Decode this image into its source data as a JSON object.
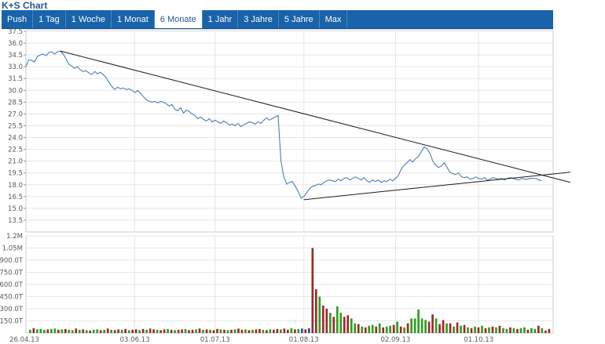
{
  "app": {
    "title": "K+S Chart"
  },
  "tabs": [
    {
      "label": "Push",
      "active": false
    },
    {
      "label": "1 Tag",
      "active": false
    },
    {
      "label": "1 Woche",
      "active": false
    },
    {
      "label": "1 Monat",
      "active": false
    },
    {
      "label": "6 Monate",
      "active": true
    },
    {
      "label": "1 Jahr",
      "active": false
    },
    {
      "label": "3 Jahre",
      "active": false
    },
    {
      "label": "5 Jahre",
      "active": false
    },
    {
      "label": "Max",
      "active": false
    }
  ],
  "colors": {
    "tab_bg": "#1863a9",
    "price_line": "#4a7fb5",
    "trend_line": "#1a1a1a",
    "volume_up": "#2e9e1f",
    "volume_down": "#9c2a2a",
    "volume_neutral": "#2a4f9c",
    "grid": "#e6e6e6"
  },
  "chart_data": [
    {
      "type": "line",
      "title": "",
      "xlabel": "",
      "ylabel": "",
      "ylim": [
        12.0,
        37.5
      ],
      "y_ticks": [
        "37.5",
        "36.0",
        "34.5",
        "33.0",
        "31.5",
        "30.0",
        "28.5",
        "27.0",
        "25.5",
        "24.0",
        "22.5",
        "21.0",
        "19.5",
        "18.0",
        "16.5",
        "15.0",
        "13.5"
      ],
      "x_tick_labels": [
        "26.04.13",
        "03.06.13",
        "01.07.13",
        "01.08.13",
        "02.09.13",
        "01.10.13"
      ],
      "x_tick_days": [
        0,
        38,
        66,
        97,
        129,
        158
      ],
      "x_range_days": [
        0,
        184
      ],
      "grid": true,
      "series": [
        {
          "values": [
            [
              0,
              33.0
            ],
            [
              1,
              33.9
            ],
            [
              2,
              33.8
            ],
            [
              3,
              33.6
            ],
            [
              4,
              34.3
            ],
            [
              5,
              34.5
            ],
            [
              6,
              34.6
            ],
            [
              7,
              34.4
            ],
            [
              8,
              34.8
            ],
            [
              9,
              34.9
            ],
            [
              10,
              34.6
            ],
            [
              11,
              34.9
            ],
            [
              12,
              35.0
            ],
            [
              13,
              34.6
            ],
            [
              14,
              34.0
            ],
            [
              15,
              33.3
            ],
            [
              16,
              33.1
            ],
            [
              17,
              32.8
            ],
            [
              18,
              33.0
            ],
            [
              19,
              32.6
            ],
            [
              20,
              32.4
            ],
            [
              21,
              32.5
            ],
            [
              22,
              32.2
            ],
            [
              23,
              32.0
            ],
            [
              24,
              32.4
            ],
            [
              25,
              32.1
            ],
            [
              26,
              32.3
            ],
            [
              27,
              32.0
            ],
            [
              28,
              31.6
            ],
            [
              29,
              31.0
            ],
            [
              30,
              30.5
            ],
            [
              31,
              30.1
            ],
            [
              32,
              30.4
            ],
            [
              33,
              30.2
            ],
            [
              34,
              30.3
            ],
            [
              35,
              30.1
            ],
            [
              36,
              30.2
            ],
            [
              37,
              30.0
            ],
            [
              38,
              29.7
            ],
            [
              39,
              30.0
            ],
            [
              40,
              29.6
            ],
            [
              41,
              29.2
            ],
            [
              42,
              28.8
            ],
            [
              43,
              28.6
            ],
            [
              44,
              28.5
            ],
            [
              45,
              28.6
            ],
            [
              46,
              28.4
            ],
            [
              47,
              28.6
            ],
            [
              48,
              28.5
            ],
            [
              49,
              28.3
            ],
            [
              50,
              28.0
            ],
            [
              51,
              28.2
            ],
            [
              52,
              27.6
            ],
            [
              53,
              27.4
            ],
            [
              54,
              27.8
            ],
            [
              55,
              27.1
            ],
            [
              56,
              27.5
            ],
            [
              57,
              27.3
            ],
            [
              58,
              27.0
            ],
            [
              59,
              26.8
            ],
            [
              60,
              26.4
            ],
            [
              61,
              26.6
            ],
            [
              62,
              26.3
            ],
            [
              63,
              26.1
            ],
            [
              64,
              26.4
            ],
            [
              65,
              26.0
            ],
            [
              66,
              26.2
            ],
            [
              67,
              26.0
            ],
            [
              68,
              25.8
            ],
            [
              69,
              26.1
            ],
            [
              70,
              25.9
            ],
            [
              71,
              25.6
            ],
            [
              72,
              25.7
            ],
            [
              73,
              25.5
            ],
            [
              74,
              25.8
            ],
            [
              75,
              25.4
            ],
            [
              76,
              25.6
            ],
            [
              77,
              25.8
            ],
            [
              78,
              26.0
            ],
            [
              79,
              25.9
            ],
            [
              80,
              25.7
            ],
            [
              81,
              26.0
            ],
            [
              82,
              25.8
            ],
            [
              83,
              26.2
            ],
            [
              84,
              26.5
            ],
            [
              85,
              26.2
            ],
            [
              86,
              26.4
            ],
            [
              87,
              26.6
            ],
            [
              88,
              26.8
            ],
            [
              89,
              21.0
            ],
            [
              90,
              19.0
            ],
            [
              91,
              18.1
            ],
            [
              92,
              18.3
            ],
            [
              93,
              18.4
            ],
            [
              94,
              17.8
            ],
            [
              95,
              17.2
            ],
            [
              96,
              16.3
            ],
            [
              97,
              16.5
            ],
            [
              98,
              17.0
            ],
            [
              99,
              17.5
            ],
            [
              100,
              17.8
            ],
            [
              101,
              17.9
            ],
            [
              102,
              18.1
            ],
            [
              103,
              18.0
            ],
            [
              104,
              18.3
            ],
            [
              105,
              18.5
            ],
            [
              106,
              18.6
            ],
            [
              107,
              18.5
            ],
            [
              108,
              18.4
            ],
            [
              109,
              18.7
            ],
            [
              110,
              18.5
            ],
            [
              111,
              18.8
            ],
            [
              112,
              18.9
            ],
            [
              113,
              18.6
            ],
            [
              114,
              18.8
            ],
            [
              115,
              19.0
            ],
            [
              116,
              18.8
            ],
            [
              117,
              18.6
            ],
            [
              118,
              18.9
            ],
            [
              119,
              18.5
            ],
            [
              120,
              18.3
            ],
            [
              121,
              18.6
            ],
            [
              122,
              18.4
            ],
            [
              123,
              18.6
            ],
            [
              124,
              18.3
            ],
            [
              125,
              18.5
            ],
            [
              126,
              18.4
            ],
            [
              127,
              18.7
            ],
            [
              128,
              18.5
            ],
            [
              129,
              18.8
            ],
            [
              130,
              19.2
            ],
            [
              131,
              20.0
            ],
            [
              132,
              20.5
            ],
            [
              133,
              20.8
            ],
            [
              134,
              21.2
            ],
            [
              135,
              20.9
            ],
            [
              136,
              21.3
            ],
            [
              137,
              21.6
            ],
            [
              138,
              22.2
            ],
            [
              139,
              22.8
            ],
            [
              140,
              22.6
            ],
            [
              141,
              22.0
            ],
            [
              142,
              21.0
            ],
            [
              143,
              20.5
            ],
            [
              144,
              20.2
            ],
            [
              145,
              20.4
            ],
            [
              146,
              20.8
            ],
            [
              147,
              20.2
            ],
            [
              148,
              19.6
            ],
            [
              149,
              19.4
            ],
            [
              150,
              19.3
            ],
            [
              151,
              19.5
            ],
            [
              152,
              19.0
            ],
            [
              153,
              18.9
            ],
            [
              154,
              19.0
            ],
            [
              155,
              18.7
            ],
            [
              156,
              18.8
            ],
            [
              157,
              19.0
            ],
            [
              158,
              18.8
            ],
            [
              159,
              18.7
            ],
            [
              160,
              18.9
            ],
            [
              161,
              18.6
            ],
            [
              162,
              18.7
            ],
            [
              163,
              18.9
            ],
            [
              164,
              18.8
            ],
            [
              165,
              18.7
            ],
            [
              166,
              18.8
            ],
            [
              167,
              18.6
            ],
            [
              168,
              18.8
            ],
            [
              169,
              18.9
            ],
            [
              170,
              18.8
            ],
            [
              171,
              18.7
            ],
            [
              172,
              18.6
            ],
            [
              173,
              18.8
            ],
            [
              174,
              18.7
            ],
            [
              175,
              18.7
            ],
            [
              176,
              18.8
            ],
            [
              177,
              18.8
            ],
            [
              178,
              18.8
            ],
            [
              179,
              18.6
            ],
            [
              180,
              18.5
            ]
          ]
        }
      ],
      "trend_lines": [
        {
          "from": [
            12,
            35.0
          ],
          "to": [
            190,
            18.3
          ]
        },
        {
          "from": [
            97,
            16.1
          ],
          "to": [
            190,
            19.6
          ]
        }
      ]
    },
    {
      "type": "bar",
      "y_ticks": [
        "1.2M",
        "1.05M",
        "900.0T",
        "750.0T",
        "600.0T",
        "450.0T",
        "300.0T",
        "150.0T"
      ],
      "ylim": [
        0,
        1200000
      ],
      "x_tick_labels": [
        "26.04.13",
        "03.06.13",
        "01.07.13",
        "01.08.13",
        "02.09.13",
        "01.10.13"
      ],
      "volumes": [
        40000,
        60000,
        45000,
        50000,
        40000,
        45000,
        50000,
        55000,
        40000,
        45000,
        50000,
        40000,
        35000,
        55000,
        40000,
        45000,
        35000,
        30000,
        40000,
        45000,
        35000,
        40000,
        55000,
        40000,
        35000,
        45000,
        40000,
        50000,
        35000,
        40000,
        45000,
        35000,
        50000,
        40000,
        55000,
        45000,
        40000,
        35000,
        45000,
        50000,
        40000,
        35000,
        40000,
        45000,
        50000,
        35000,
        40000,
        45000,
        55000,
        40000,
        45000,
        40000,
        35000,
        50000,
        45000,
        40000,
        35000,
        40000,
        45000,
        55000,
        40000,
        45000,
        35000,
        40000,
        45000,
        50000,
        40000,
        35000,
        45000,
        40000,
        50000,
        45000,
        55000,
        40000,
        60000,
        45000,
        50000,
        55000,
        45000,
        60000,
        1050000,
        540000,
        450000,
        340000,
        300000,
        250000,
        200000,
        330000,
        250000,
        200000,
        220000,
        180000,
        120000,
        110000,
        80000,
        70000,
        90000,
        100000,
        80000,
        120000,
        70000,
        80000,
        90000,
        100000,
        140000,
        80000,
        70000,
        120000,
        180000,
        180000,
        290000,
        180000,
        160000,
        140000,
        230000,
        180000,
        110000,
        160000,
        120000,
        120000,
        80000,
        130000,
        90000,
        100000,
        70000,
        60000,
        80000,
        70000,
        90000,
        60000,
        70000,
        80000,
        70000,
        90000,
        60000,
        50000,
        70000,
        60000,
        50000,
        60000,
        70000,
        40000,
        60000,
        50000,
        90000,
        60000,
        30000,
        50000
      ],
      "directions": [
        "up",
        "down",
        "up",
        "up",
        "up",
        "down",
        "up",
        "up",
        "down",
        "up",
        "down",
        "up",
        "up",
        "down",
        "up",
        "down",
        "up",
        "down",
        "up",
        "up",
        "down",
        "up",
        "down",
        "up",
        "down",
        "down",
        "up",
        "down",
        "up",
        "down",
        "down",
        "up",
        "down",
        "up",
        "down",
        "down",
        "up",
        "down",
        "down",
        "up",
        "down",
        "up",
        "down",
        "down",
        "up",
        "down",
        "down",
        "up",
        "down",
        "up",
        "down",
        "up",
        "down",
        "down",
        "up",
        "down",
        "up",
        "down",
        "up",
        "down",
        "down",
        "up",
        "down",
        "up",
        "down",
        "down",
        "up",
        "down",
        "up",
        "down",
        "down",
        "up",
        "down",
        "down",
        "up",
        "down",
        "up",
        "neutral",
        "down",
        "neutral",
        "down",
        "down",
        "up",
        "down",
        "down",
        "up",
        "down",
        "up",
        "up",
        "down",
        "down",
        "up",
        "up",
        "down",
        "up",
        "down",
        "up",
        "up",
        "down",
        "up",
        "down",
        "up",
        "up",
        "down",
        "up",
        "down",
        "up",
        "down",
        "up",
        "up",
        "up",
        "up",
        "up",
        "down",
        "down",
        "up",
        "down",
        "down",
        "up",
        "down",
        "up",
        "down",
        "up",
        "down",
        "up",
        "down",
        "up",
        "down",
        "up",
        "down",
        "up",
        "down",
        "up",
        "down",
        "up",
        "up",
        "down",
        "up",
        "down",
        "up",
        "up",
        "down",
        "up",
        "up",
        "down",
        "up",
        "down",
        "down"
      ]
    }
  ]
}
